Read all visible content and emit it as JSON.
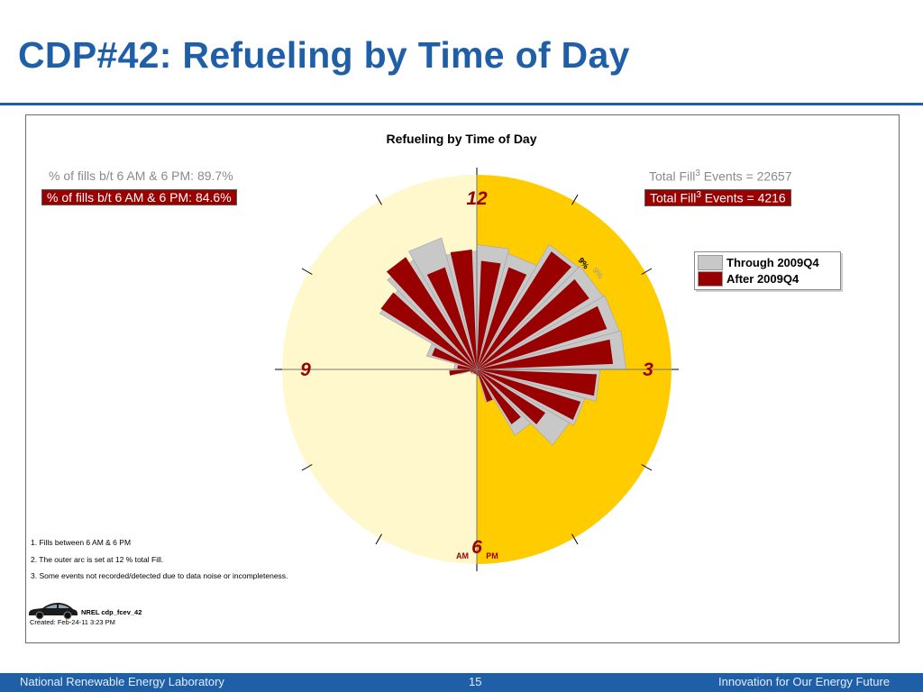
{
  "slide": {
    "title": "CDP#42: Refueling by Time of Day",
    "footer_left": "National Renewable Energy Laboratory",
    "page_number": "15",
    "footer_right": "Innovation for Our Energy Future"
  },
  "chart_data": {
    "type": "polar-bar",
    "title": "Refueling by Time of Day",
    "stats": {
      "gray_pct": "% of fills b/t 6 AM & 6 PM: 89.7%",
      "red_pct": "% of fills b/t 6 AM & 6 PM: 84.6%",
      "gray_total_prefix": "Total Fill",
      "gray_total_sup": "3",
      "gray_total_suffix": " Events = 22657",
      "red_total_prefix": "Total Fill",
      "red_total_sup": "3",
      "red_total_suffix": " Events = 4216"
    },
    "clock_labels": {
      "top": "12",
      "right": "3",
      "bottom": "6",
      "left": "9",
      "am": "AM",
      "pm": "PM"
    },
    "scale_max_pct": 12,
    "hours_pm_start": [
      12,
      13,
      14,
      15,
      16,
      17,
      18,
      19,
      20,
      21,
      22,
      23,
      0,
      1,
      2,
      3,
      4,
      5,
      6,
      7,
      8,
      9,
      10,
      11
    ],
    "series": [
      {
        "name": "Through 2009Q4",
        "color": "#c8c8c8",
        "values": [
          7.7,
          7.4,
          8.9,
          9.0,
          9.1,
          9.2,
          7.6,
          6.9,
          6.6,
          4.7,
          2.1,
          0.4,
          0.3,
          0.3,
          0.3,
          0.4,
          0.4,
          1.1,
          1.4,
          3.2,
          6.9,
          7.8,
          8.4,
          7.3
        ]
      },
      {
        "name": "After 2009Q4",
        "color": "#990000",
        "values": [
          6.7,
          6.6,
          8.6,
          8.2,
          8.4,
          8.4,
          7.4,
          6.7,
          5.0,
          4.0,
          2.1,
          0.4,
          0.3,
          0.3,
          0.3,
          0.3,
          0.4,
          1.7,
          1.2,
          2.9,
          7.0,
          8.2,
          6.6,
          7.4
        ]
      }
    ],
    "label_9pct": "9%",
    "colors": {
      "am_half": "#fff8cc",
      "pm_half": "#ffcc00",
      "gray_bar": "#c8c8c8",
      "red_bar": "#990000"
    }
  },
  "notes": [
    "1. Fills between 6 AM & 6 PM",
    "2. The outer arc is set at 12 % total Fill.",
    "3. Some events not recorded/detected due to data noise or incompleteness."
  ],
  "nrel_id": "NREL cdp_fcev_42",
  "created": "Created: Feb-24-11  3:23 PM"
}
